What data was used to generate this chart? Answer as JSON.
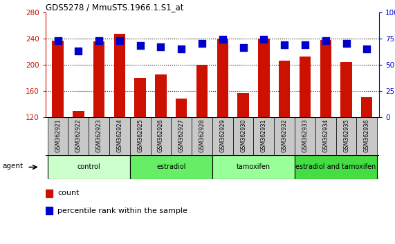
{
  "title": "GDS5278 / MmuSTS.1966.1.S1_at",
  "samples": [
    "GSM362921",
    "GSM362922",
    "GSM362923",
    "GSM362924",
    "GSM362925",
    "GSM362926",
    "GSM362927",
    "GSM362928",
    "GSM362929",
    "GSM362930",
    "GSM362931",
    "GSM362932",
    "GSM362933",
    "GSM362934",
    "GSM362935",
    "GSM362936"
  ],
  "counts": [
    237,
    129,
    236,
    247,
    180,
    185,
    148,
    200,
    240,
    157,
    240,
    206,
    212,
    238,
    204,
    150
  ],
  "percentiles": [
    73,
    63,
    73,
    73,
    68,
    67,
    65,
    70,
    74,
    66,
    74,
    69,
    69,
    73,
    70,
    65
  ],
  "groups": [
    {
      "label": "control",
      "start": 0,
      "end": 4,
      "color": "#ccffcc"
    },
    {
      "label": "estradiol",
      "start": 4,
      "end": 8,
      "color": "#66ee66"
    },
    {
      "label": "tamoxifen",
      "start": 8,
      "end": 12,
      "color": "#99ff99"
    },
    {
      "label": "estradiol and tamoxifen",
      "start": 12,
      "end": 16,
      "color": "#44dd44"
    }
  ],
  "ylim_left": [
    120,
    280
  ],
  "ylim_right": [
    0,
    100
  ],
  "yticks_left": [
    120,
    160,
    200,
    240,
    280
  ],
  "yticks_right": [
    0,
    25,
    50,
    75,
    100
  ],
  "ytick_labels_right": [
    "0",
    "25",
    "50",
    "75",
    "100%"
  ],
  "bar_color": "#cc1100",
  "dot_color": "#0000cc",
  "grid_color": "#000000",
  "bg_color": "#ffffff",
  "tick_label_color_left": "#cc1100",
  "tick_label_color_right": "#0000cc",
  "bar_width": 0.55,
  "dot_size": 45,
  "agent_label": "agent",
  "legend_count_label": "count",
  "legend_percentile_label": "percentile rank within the sample",
  "xlim": [
    -0.6,
    15.6
  ]
}
